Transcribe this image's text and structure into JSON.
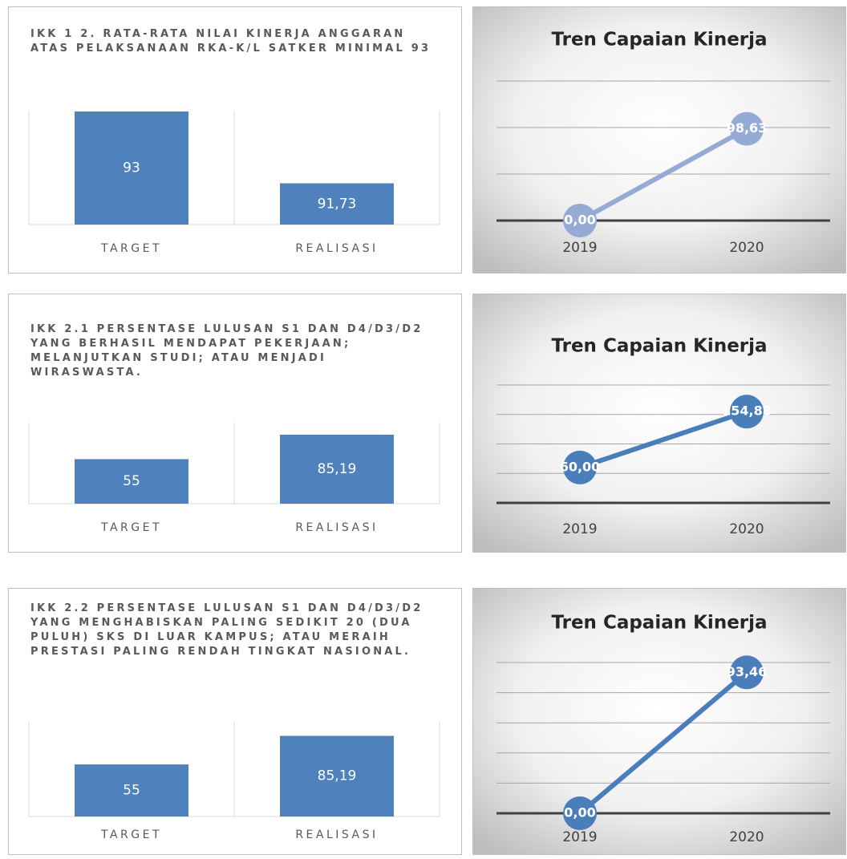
{
  "chart_data": [
    {
      "type": "bar",
      "title": "IKK 1 2. RATA-RATA NILAI KINERJA ANGGARAN ATAS PELAKSANAAN RKA-K/L SATKER MINIMAL 93",
      "categories": [
        "TARGET",
        "REALISASI"
      ],
      "values": [
        93,
        91.73
      ],
      "value_labels": [
        "93",
        "91,73"
      ],
      "color": "#4f81bd",
      "ylim": [
        91,
        93
      ]
    },
    {
      "type": "line",
      "title": "Tren Capaian Kinerja",
      "categories": [
        "2019",
        "2020"
      ],
      "values": [
        0,
        98.63
      ],
      "value_labels": [
        "0,00",
        "98,63"
      ],
      "color": "#95abd6",
      "ylim": [
        0,
        150
      ],
      "yticks": [
        0,
        50,
        100,
        150
      ],
      "grid": true
    },
    {
      "type": "bar",
      "title": "IKK  2.1 PERSENTASE LULUSAN S1 DAN D4/D3/D2 YANG BERHASIL MENDAPAT PEKERJAAN; MELANJUTKAN STUDI; ATAU MENJADI WIRASWASTA.",
      "categories": [
        "TARGET",
        "REALISASI"
      ],
      "values": [
        55,
        85.19
      ],
      "value_labels": [
        "55",
        "85,19"
      ],
      "color": "#4f81bd",
      "ylim": [
        0,
        100
      ]
    },
    {
      "type": "line",
      "title": "Tren Capaian Kinerja",
      "categories": [
        "2019",
        "2020"
      ],
      "values": [
        60,
        154.88
      ],
      "value_labels": [
        "60,00",
        "154,88"
      ],
      "color": "#4a7ebb",
      "ylim": [
        0,
        200
      ],
      "yticks": [
        0,
        50,
        100,
        150,
        200
      ],
      "grid": true
    },
    {
      "type": "bar",
      "title": "IKK  2.2 PERSENTASE LULUSAN S1 DAN D4/D3/D2 YANG MENGHABISKAN PALING SEDIKIT 20 (DUA PULUH) SKS DI LUAR KAMPUS; ATAU MERAIH PRESTASI PALING RENDAH TINGKAT NASIONAL.",
      "categories": [
        "TARGET",
        "REALISASI"
      ],
      "values": [
        55,
        85.19
      ],
      "value_labels": [
        "55",
        "85,19"
      ],
      "color": "#4f81bd",
      "ylim": [
        0,
        100
      ]
    },
    {
      "type": "line",
      "title": "Tren Capaian Kinerja",
      "categories": [
        "2019",
        "2020"
      ],
      "values": [
        0,
        93.46
      ],
      "value_labels": [
        "0,00",
        "93,46"
      ],
      "color": "#4a7ebb",
      "ylim": [
        0,
        100
      ],
      "yticks": [
        0,
        20,
        40,
        60,
        80,
        100
      ],
      "grid": true
    }
  ]
}
